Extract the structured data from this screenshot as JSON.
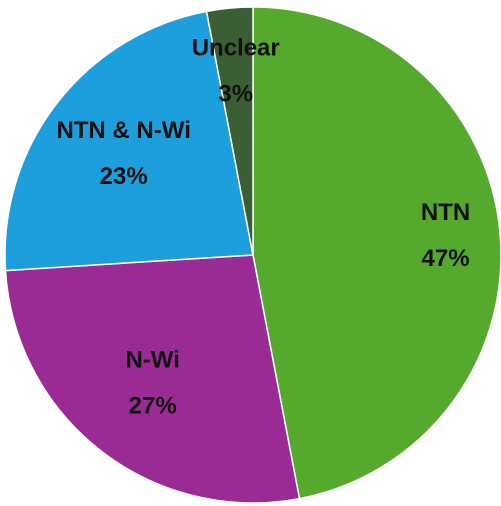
{
  "chart_data": {
    "type": "pie",
    "categories": [
      "NTN",
      "N-Wi",
      "NTN & N-Wi",
      "Unclear"
    ],
    "values": [
      47,
      27,
      23,
      3
    ],
    "value_labels": [
      "47%",
      "27%",
      "23%",
      "3%"
    ],
    "colors": [
      "#55a92c",
      "#9a2a94",
      "#1c9fdc",
      "#3b5e35"
    ]
  }
}
